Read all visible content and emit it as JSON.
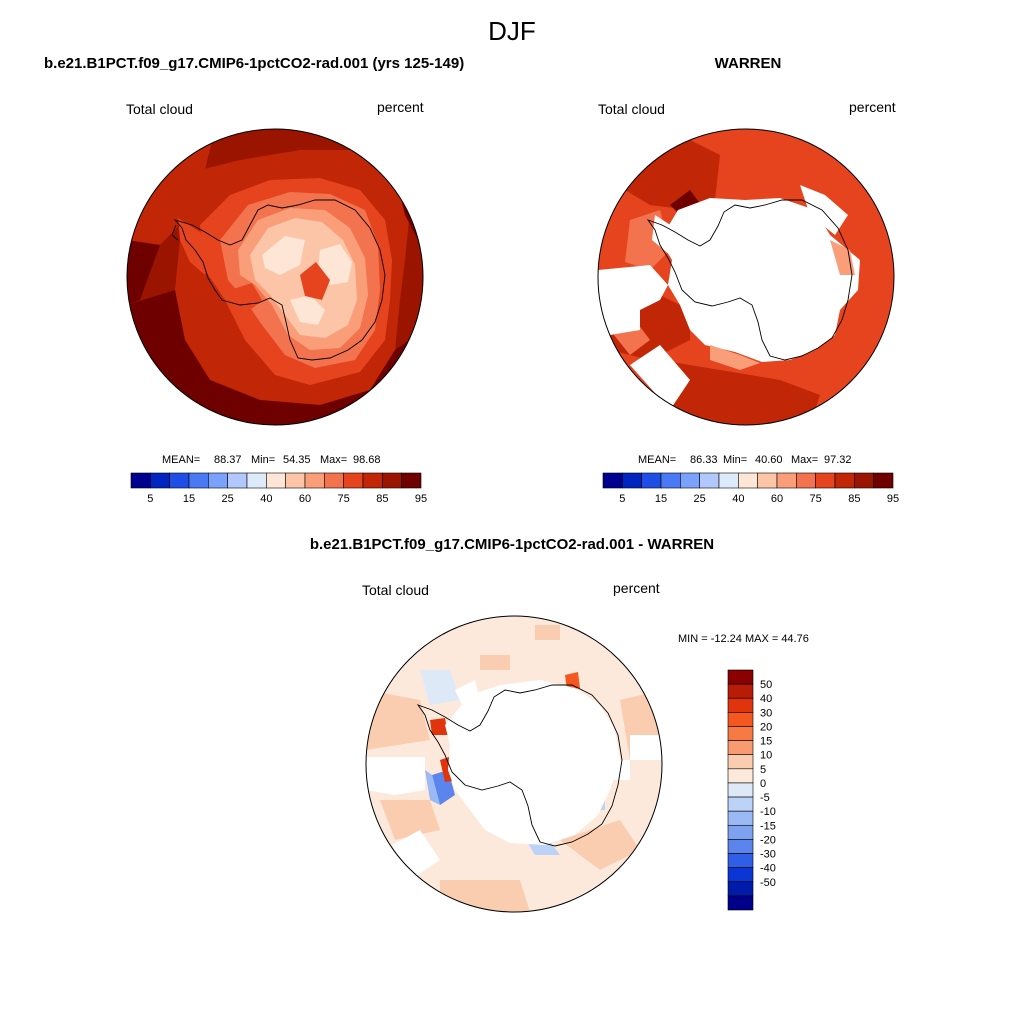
{
  "figure_title": "DJF",
  "panels": {
    "top_left": {
      "title": "b.e21.B1PCT.f09_g17.CMIP6-1pctCO2-rad.001 (yrs 125-149)",
      "variable": "Total cloud",
      "units": "percent",
      "stats": {
        "mean": "88.37",
        "min": "54.35",
        "max": "98.68"
      }
    },
    "top_right": {
      "title": "WARREN",
      "variable": "Total cloud",
      "units": "percent",
      "stats": {
        "mean": "86.33",
        "min": "40.60",
        "max": "97.32"
      }
    },
    "bottom": {
      "title": "b.e21.B1PCT.f09_g17.CMIP6-1pctCO2-rad.001 - WARREN",
      "variable": "Total cloud",
      "units": "percent",
      "minmax": "MIN = -12.24 MAX =  44.76"
    }
  },
  "labels": {
    "mean": "MEAN=",
    "min": "Min=",
    "max": "Max="
  },
  "chart_data": [
    {
      "type": "heatmap",
      "name": "model_total_cloud",
      "projection": "south-polar-stereographic",
      "colorbar": {
        "orientation": "horizontal",
        "colors": [
          "#00008f",
          "#0024c0",
          "#1f4ee6",
          "#4a79f5",
          "#7aa1fb",
          "#b2c8fd",
          "#dceafa",
          "#fde6d6",
          "#fcc5a8",
          "#fa9e7a",
          "#f2734e",
          "#e5441f",
          "#c12607",
          "#9a1400",
          "#6e0000"
        ],
        "tick_labels": [
          "5",
          "15",
          "25",
          "40",
          "60",
          "75",
          "85",
          "95"
        ]
      },
      "stats": {
        "mean": 88.37,
        "min": 54.35,
        "max": 98.68
      }
    },
    {
      "type": "heatmap",
      "name": "warren_total_cloud",
      "projection": "south-polar-stereographic",
      "colorbar": {
        "orientation": "horizontal",
        "colors": [
          "#00008f",
          "#0024c0",
          "#1f4ee6",
          "#4a79f5",
          "#7aa1fb",
          "#b2c8fd",
          "#dceafa",
          "#fde6d6",
          "#fcc5a8",
          "#fa9e7a",
          "#f2734e",
          "#e5441f",
          "#c12607",
          "#9a1400",
          "#6e0000"
        ],
        "tick_labels": [
          "5",
          "15",
          "25",
          "40",
          "60",
          "75",
          "85",
          "95"
        ]
      },
      "stats": {
        "mean": 86.33,
        "min": 40.6,
        "max": 97.32
      }
    },
    {
      "type": "heatmap",
      "name": "difference_total_cloud",
      "projection": "south-polar-stereographic",
      "colorbar": {
        "orientation": "vertical",
        "colors": [
          "#8b0000",
          "#b71c06",
          "#e0340d",
          "#f55720",
          "#f77a45",
          "#f89b70",
          "#facdb1",
          "#fde9dc",
          "#dde9f6",
          "#bcd2f7",
          "#9ab9f5",
          "#7ea2f0",
          "#5b84ec",
          "#2f5fe7",
          "#0a36d6",
          "#001ba9",
          "#00008b"
        ],
        "tick_labels": [
          "50",
          "40",
          "30",
          "20",
          "15",
          "10",
          "5",
          "0",
          "-5",
          "-10",
          "-15",
          "-20",
          "-30",
          "-40",
          "-50"
        ]
      },
      "stats": {
        "min": -12.24,
        "max": 44.76
      }
    }
  ]
}
